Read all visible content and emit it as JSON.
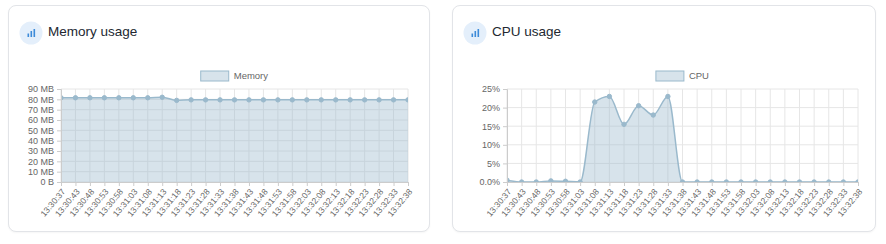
{
  "chart_data": [
    {
      "type": "area",
      "title": "Memory usage",
      "categories": [
        "13:30:37",
        "13:30:43",
        "13:30:48",
        "13:30:53",
        "13:30:58",
        "13:31:03",
        "13:31:08",
        "13:31:13",
        "13:31:18",
        "13:31:23",
        "13:31:28",
        "13:31:33",
        "13:31:38",
        "13:31:43",
        "13:31:48",
        "13:31:53",
        "13:31:58",
        "13:32:03",
        "13:32:08",
        "13:32:13",
        "13:32:18",
        "13:32:23",
        "13:32:28",
        "13:32:33",
        "13:32:38"
      ],
      "series": [
        {
          "name": "Memory",
          "color": "#9ab9cc",
          "values": [
            81.5,
            81.5,
            81.5,
            81.5,
            81.5,
            81.5,
            81.5,
            82,
            79,
            79.5,
            79.5,
            79.5,
            79.5,
            79.5,
            79.5,
            79.5,
            79.5,
            79.5,
            79.5,
            79.5,
            79.5,
            79.5,
            79.5,
            79.5,
            79.5
          ]
        }
      ],
      "ylim": [
        0,
        90
      ],
      "yticks": [
        {
          "value": 0,
          "label": "0 B"
        },
        {
          "value": 10,
          "label": "10 MB"
        },
        {
          "value": 20,
          "label": "20 MB"
        },
        {
          "value": 30,
          "label": "30 MB"
        },
        {
          "value": 40,
          "label": "40 MB"
        },
        {
          "value": 50,
          "label": "50 MB"
        },
        {
          "value": 60,
          "label": "60 MB"
        },
        {
          "value": 70,
          "label": "70 MB"
        },
        {
          "value": 80,
          "label": "80 MB"
        },
        {
          "value": 90,
          "label": "90 MB"
        }
      ],
      "grid": true,
      "legend": "top",
      "marker": "circle"
    },
    {
      "type": "area",
      "title": "CPU usage",
      "categories": [
        "13:30:37",
        "13:30:43",
        "13:30:48",
        "13:30:53",
        "13:30:58",
        "13:31:03",
        "13:31:08",
        "13:31:13",
        "13:31:18",
        "13:31:23",
        "13:31:28",
        "13:31:33",
        "13:31:38",
        "13:31:43",
        "13:31:48",
        "13:31:53",
        "13:31:58",
        "13:32:03",
        "13:32:08",
        "13:32:13",
        "13:32:18",
        "13:32:23",
        "13:32:28",
        "13:32:33",
        "13:32:38"
      ],
      "series": [
        {
          "name": "CPU",
          "color": "#9ab9cc",
          "values": [
            0.5,
            0,
            0,
            0.3,
            0.2,
            0,
            21.5,
            23,
            15.5,
            20.5,
            18,
            23,
            0,
            0,
            0,
            0,
            0,
            0,
            0,
            0,
            0,
            0,
            0,
            0,
            0
          ]
        }
      ],
      "ylim": [
        0,
        25
      ],
      "yticks": [
        {
          "value": 0,
          "label": "0.0%"
        },
        {
          "value": 5,
          "label": "5%"
        },
        {
          "value": 10,
          "label": "10%"
        },
        {
          "value": 15,
          "label": "15%"
        },
        {
          "value": 20,
          "label": "20%"
        },
        {
          "value": 25,
          "label": "25%"
        }
      ],
      "grid": true,
      "legend": "top",
      "marker": "circle"
    }
  ]
}
